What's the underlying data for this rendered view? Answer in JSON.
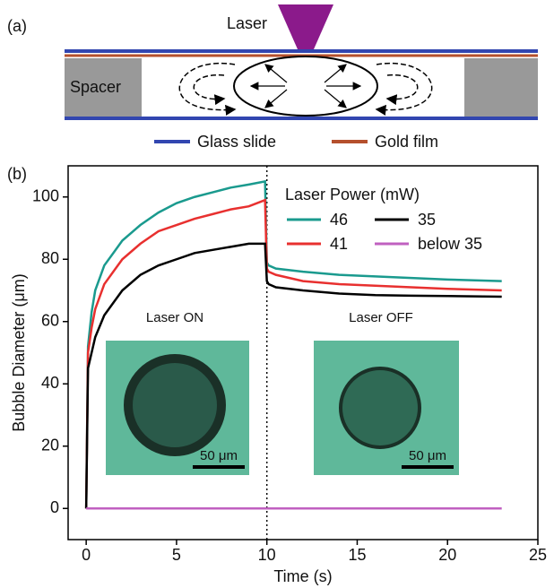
{
  "panel_a": {
    "label": "(a)",
    "laser": "Laser",
    "spacer": "Spacer",
    "legend": [
      "Glass slide",
      "Gold film"
    ]
  },
  "chart_data": {
    "type": "line",
    "panel_label": "(b)",
    "xlabel": "Time (s)",
    "ylabel": "Bubble Diameter (μm)",
    "xlim": [
      -1,
      25
    ],
    "ylim": [
      -10,
      110
    ],
    "xticks": [
      0,
      5,
      10,
      15,
      20,
      25
    ],
    "yticks": [
      0,
      20,
      40,
      60,
      80,
      100
    ],
    "legend_title": "Laser Power (mW)",
    "vline_x": 10,
    "annotations": [
      "Laser ON",
      "Laser OFF",
      "50 μm",
      "50 μm"
    ],
    "x": [
      0,
      0.1,
      0.3,
      0.5,
      1,
      2,
      3,
      4,
      5,
      6,
      7,
      8,
      9,
      9.9,
      10,
      10.1,
      10.5,
      12,
      14,
      16,
      18,
      20,
      23
    ],
    "series": [
      {
        "name": "46",
        "color": "#1a9a8e",
        "values": [
          0,
          52,
          63,
          70,
          78,
          86,
          91,
          95,
          98,
          100,
          101.5,
          103,
          104,
          105,
          79,
          78,
          77,
          76,
          75,
          74.5,
          74,
          73.5,
          73
        ]
      },
      {
        "name": "41",
        "color": "#e8302f",
        "values": [
          0,
          50,
          58,
          64,
          72,
          80,
          85,
          89,
          91,
          93,
          94.5,
          96,
          97,
          99,
          77,
          76,
          75,
          73,
          72,
          71.5,
          71,
          70.5,
          70
        ]
      },
      {
        "name": "35",
        "color": "#000000",
        "values": [
          0,
          45,
          50,
          55,
          62,
          70,
          75,
          78,
          80,
          82,
          83,
          84,
          85,
          85,
          73,
          72,
          71,
          70,
          69,
          68.5,
          68.3,
          68.2,
          68
        ]
      },
      {
        "name": "below 35",
        "color": "#c060c0",
        "values": [
          0,
          0,
          0,
          0,
          0,
          0,
          0,
          0,
          0,
          0,
          0,
          0,
          0,
          0,
          0,
          0,
          0,
          0,
          0,
          0,
          0,
          0,
          0
        ]
      }
    ]
  }
}
